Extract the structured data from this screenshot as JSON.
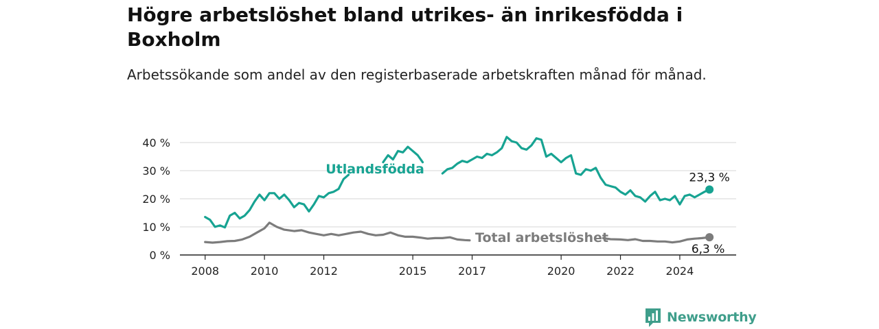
{
  "header": {
    "title": "Högre arbetslöshet bland utrikes- än inrikesfödda i Boxholm",
    "subtitle": "Arbetssökande som andel av den registerbaserade arbetskraften månad för månad."
  },
  "brand": {
    "name": "Newsworthy",
    "icon": "newsworthy-logo-icon",
    "color": "#3f9e8b"
  },
  "colors": {
    "foreign": "#17a392",
    "total": "#7c7c7c",
    "grid": "#d6d6d6",
    "axis": "#222222"
  },
  "chart_data": {
    "type": "line",
    "title": "Högre arbetslöshet bland utrikes- än inrikesfödda i Boxholm",
    "subtitle": "Arbetssökande som andel av den registerbaserade arbetskraften månad för månad.",
    "xlabel": "",
    "ylabel": "",
    "ylim": [
      0,
      40
    ],
    "yticks": [
      0,
      10,
      20,
      30,
      40
    ],
    "ytick_labels": [
      "0 %",
      "10 %",
      "20 %",
      "30 %",
      "40 %"
    ],
    "xticks": [
      "2008",
      "2010",
      "2012",
      "2015",
      "2017",
      "2020",
      "2022",
      "2024"
    ],
    "grid": "horizontal",
    "legend": "inline labels",
    "series": [
      {
        "name": "Utlandsfödda",
        "end_label": "23,3 %",
        "points": [
          [
            "2008-01",
            13.5
          ],
          [
            "2008-03",
            12.5
          ],
          [
            "2008-05",
            10.0
          ],
          [
            "2008-07",
            10.5
          ],
          [
            "2008-09",
            9.8
          ],
          [
            "2008-11",
            14.0
          ],
          [
            "2009-01",
            15.0
          ],
          [
            "2009-03",
            13.0
          ],
          [
            "2009-05",
            14.0
          ],
          [
            "2009-07",
            16.0
          ],
          [
            "2009-09",
            19.0
          ],
          [
            "2009-11",
            21.5
          ],
          [
            "2010-01",
            19.5
          ],
          [
            "2010-03",
            22.0
          ],
          [
            "2010-05",
            22.0
          ],
          [
            "2010-07",
            20.0
          ],
          [
            "2010-09",
            21.5
          ],
          [
            "2010-11",
            19.5
          ],
          [
            "2011-01",
            17.0
          ],
          [
            "2011-03",
            18.5
          ],
          [
            "2011-05",
            18.0
          ],
          [
            "2011-07",
            15.5
          ],
          [
            "2011-09",
            18.0
          ],
          [
            "2011-11",
            21.0
          ],
          [
            "2012-01",
            20.5
          ],
          [
            "2012-03",
            22.0
          ],
          [
            "2012-05",
            22.5
          ],
          [
            "2012-07",
            23.5
          ],
          [
            "2012-09",
            27.0
          ],
          [
            "2012-11",
            28.5
          ],
          [
            "2013-01",
            null
          ],
          [
            "2014-01",
            33.0
          ],
          [
            "2014-03",
            35.5
          ],
          [
            "2014-05",
            34.0
          ],
          [
            "2014-07",
            37.0
          ],
          [
            "2014-09",
            36.5
          ],
          [
            "2014-11",
            38.5
          ],
          [
            "2015-01",
            37.0
          ],
          [
            "2015-03",
            35.5
          ],
          [
            "2015-05",
            33.0
          ],
          [
            "2015-07",
            null
          ],
          [
            "2016-01",
            29.0
          ],
          [
            "2016-03",
            30.5
          ],
          [
            "2016-05",
            31.0
          ],
          [
            "2016-07",
            32.5
          ],
          [
            "2016-09",
            33.5
          ],
          [
            "2016-11",
            33.0
          ],
          [
            "2017-01",
            34.0
          ],
          [
            "2017-03",
            35.0
          ],
          [
            "2017-05",
            34.5
          ],
          [
            "2017-07",
            36.0
          ],
          [
            "2017-09",
            35.5
          ],
          [
            "2017-11",
            36.5
          ],
          [
            "2018-01",
            38.0
          ],
          [
            "2018-03",
            42.0
          ],
          [
            "2018-05",
            40.5
          ],
          [
            "2018-07",
            40.0
          ],
          [
            "2018-09",
            38.0
          ],
          [
            "2018-11",
            37.5
          ],
          [
            "2019-01",
            39.0
          ],
          [
            "2019-03",
            41.5
          ],
          [
            "2019-05",
            41.0
          ],
          [
            "2019-07",
            35.0
          ],
          [
            "2019-09",
            36.0
          ],
          [
            "2019-11",
            34.5
          ],
          [
            "2020-01",
            33.0
          ],
          [
            "2020-03",
            34.5
          ],
          [
            "2020-05",
            35.5
          ],
          [
            "2020-07",
            29.0
          ],
          [
            "2020-09",
            28.5
          ],
          [
            "2020-11",
            30.5
          ],
          [
            "2021-01",
            30.0
          ],
          [
            "2021-03",
            31.0
          ],
          [
            "2021-05",
            27.5
          ],
          [
            "2021-07",
            25.0
          ],
          [
            "2021-09",
            24.5
          ],
          [
            "2021-11",
            24.0
          ],
          [
            "2022-01",
            22.5
          ],
          [
            "2022-03",
            21.5
          ],
          [
            "2022-05",
            23.0
          ],
          [
            "2022-07",
            21.0
          ],
          [
            "2022-09",
            20.5
          ],
          [
            "2022-11",
            19.0
          ],
          [
            "2023-01",
            21.0
          ],
          [
            "2023-03",
            22.5
          ],
          [
            "2023-05",
            19.5
          ],
          [
            "2023-07",
            20.0
          ],
          [
            "2023-09",
            19.5
          ],
          [
            "2023-11",
            21.0
          ],
          [
            "2024-01",
            18.0
          ],
          [
            "2024-03",
            21.0
          ],
          [
            "2024-05",
            21.5
          ],
          [
            "2024-07",
            20.5
          ],
          [
            "2024-09",
            21.5
          ],
          [
            "2024-11",
            22.5
          ],
          [
            "2025-01",
            23.3
          ]
        ]
      },
      {
        "name": "Total arbetslöshet",
        "end_label": "6,3 %",
        "points": [
          [
            "2008-01",
            4.6
          ],
          [
            "2008-04",
            4.4
          ],
          [
            "2008-07",
            4.6
          ],
          [
            "2008-10",
            4.9
          ],
          [
            "2009-01",
            5.0
          ],
          [
            "2009-04",
            5.5
          ],
          [
            "2009-07",
            6.5
          ],
          [
            "2009-10",
            8.0
          ],
          [
            "2010-01",
            9.5
          ],
          [
            "2010-03",
            11.5
          ],
          [
            "2010-06",
            10.0
          ],
          [
            "2010-09",
            9.0
          ],
          [
            "2011-01",
            8.5
          ],
          [
            "2011-04",
            8.8
          ],
          [
            "2011-07",
            8.0
          ],
          [
            "2011-10",
            7.5
          ],
          [
            "2012-01",
            7.0
          ],
          [
            "2012-04",
            7.5
          ],
          [
            "2012-07",
            7.0
          ],
          [
            "2012-10",
            7.5
          ],
          [
            "2013-01",
            8.0
          ],
          [
            "2013-04",
            8.3
          ],
          [
            "2013-07",
            7.5
          ],
          [
            "2013-10",
            7.0
          ],
          [
            "2014-01",
            7.2
          ],
          [
            "2014-04",
            8.0
          ],
          [
            "2014-07",
            7.0
          ],
          [
            "2014-10",
            6.5
          ],
          [
            "2015-01",
            6.5
          ],
          [
            "2015-04",
            6.2
          ],
          [
            "2015-07",
            5.8
          ],
          [
            "2015-10",
            6.0
          ],
          [
            "2016-01",
            6.0
          ],
          [
            "2016-04",
            6.3
          ],
          [
            "2016-07",
            5.5
          ],
          [
            "2016-10",
            5.3
          ],
          [
            "2016-12",
            5.2
          ],
          [
            "2017-01",
            null
          ],
          [
            "2021-06",
            6.0
          ],
          [
            "2021-09",
            5.6
          ],
          [
            "2022-01",
            5.5
          ],
          [
            "2022-04",
            5.3
          ],
          [
            "2022-07",
            5.6
          ],
          [
            "2022-10",
            5.0
          ],
          [
            "2023-01",
            5.0
          ],
          [
            "2023-04",
            4.8
          ],
          [
            "2023-07",
            4.8
          ],
          [
            "2023-10",
            4.5
          ],
          [
            "2024-01",
            4.8
          ],
          [
            "2024-04",
            5.5
          ],
          [
            "2024-07",
            5.8
          ],
          [
            "2024-10",
            6.0
          ],
          [
            "2025-01",
            6.3
          ]
        ]
      }
    ]
  }
}
